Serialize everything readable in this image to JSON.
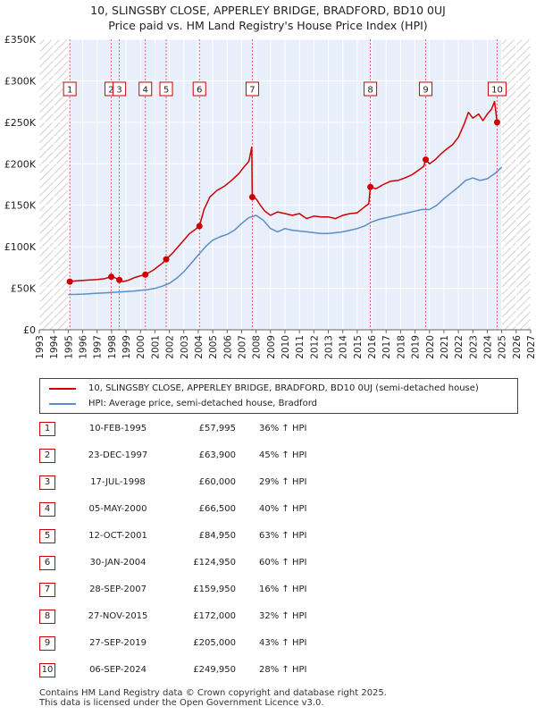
{
  "title_line1": "10, SLINGSBY CLOSE, APPERLEY BRIDGE, BRADFORD, BD10 0UJ",
  "title_line2": "Price paid vs. HM Land Registry's House Price Index (HPI)",
  "colors": {
    "price": "#cc0000",
    "hpi": "#5b8ec7",
    "shade": "#e8eefa",
    "hatch": "#bbbbbb"
  },
  "legend": {
    "price_label": "10, SLINGSBY CLOSE, APPERLEY BRIDGE, BRADFORD, BD10 0UJ (semi-detached house)",
    "hpi_label": "HPI: Average price, semi-detached house, Bradford"
  },
  "transactions": [
    {
      "num": "1",
      "date": "10-FEB-1995",
      "price": "£57,995",
      "hpi": "36% ↑ HPI"
    },
    {
      "num": "2",
      "date": "23-DEC-1997",
      "price": "£63,900",
      "hpi": "45% ↑ HPI"
    },
    {
      "num": "3",
      "date": "17-JUL-1998",
      "price": "£60,000",
      "hpi": "29% ↑ HPI"
    },
    {
      "num": "4",
      "date": "05-MAY-2000",
      "price": "£66,500",
      "hpi": "40% ↑ HPI"
    },
    {
      "num": "5",
      "date": "12-OCT-2001",
      "price": "£84,950",
      "hpi": "63% ↑ HPI"
    },
    {
      "num": "6",
      "date": "30-JAN-2004",
      "price": "£124,950",
      "hpi": "60% ↑ HPI"
    },
    {
      "num": "7",
      "date": "28-SEP-2007",
      "price": "£159,950",
      "hpi": "16% ↑ HPI"
    },
    {
      "num": "8",
      "date": "27-NOV-2015",
      "price": "£172,000",
      "hpi": "32% ↑ HPI"
    },
    {
      "num": "9",
      "date": "27-SEP-2019",
      "price": "£205,000",
      "hpi": "43% ↑ HPI"
    },
    {
      "num": "10",
      "date": "06-SEP-2024",
      "price": "£249,950",
      "hpi": "28% ↑ HPI"
    }
  ],
  "footer_line1": "Contains HM Land Registry data © Crown copyright and database right 2025.",
  "footer_line2": "This data is licensed under the Open Government Licence v3.0.",
  "chart_data": {
    "type": "line",
    "xlim": [
      1993,
      2027
    ],
    "ylim": [
      0,
      350000
    ],
    "x_ticks": [
      "1993",
      "1994",
      "1995",
      "1996",
      "1997",
      "1998",
      "1999",
      "2000",
      "2001",
      "2002",
      "2003",
      "2004",
      "2005",
      "2006",
      "2007",
      "2008",
      "2009",
      "2010",
      "2011",
      "2012",
      "2013",
      "2014",
      "2015",
      "2016",
      "2017",
      "2018",
      "2019",
      "2020",
      "2021",
      "2022",
      "2023",
      "2024",
      "2025",
      "2026",
      "2027"
    ],
    "y_ticks": [
      {
        "value": 0,
        "label": "£0"
      },
      {
        "value": 50000,
        "label": "£50K"
      },
      {
        "value": 100000,
        "label": "£100K"
      },
      {
        "value": 150000,
        "label": "£150K"
      },
      {
        "value": 200000,
        "label": "£200K"
      },
      {
        "value": 250000,
        "label": "£250K"
      },
      {
        "value": 300000,
        "label": "£300K"
      },
      {
        "value": 350000,
        "label": "£350K"
      }
    ],
    "hatch_before": 1995.11,
    "hatch_after": 2025.0,
    "sales": [
      {
        "label": "1",
        "x": 1995.11,
        "y": 57995
      },
      {
        "label": "2",
        "x": 1997.98,
        "y": 63900
      },
      {
        "label": "3",
        "x": 1998.54,
        "y": 60000
      },
      {
        "label": "4",
        "x": 2000.34,
        "y": 66500
      },
      {
        "label": "5",
        "x": 2001.78,
        "y": 84950
      },
      {
        "label": "6",
        "x": 2004.08,
        "y": 124950
      },
      {
        "label": "7",
        "x": 2007.74,
        "y": 159950
      },
      {
        "label": "8",
        "x": 2015.91,
        "y": 172000
      },
      {
        "label": "9",
        "x": 2019.74,
        "y": 205000
      },
      {
        "label": "10",
        "x": 2024.68,
        "y": 249950
      }
    ],
    "series": [
      {
        "name": "10, SLINGSBY CLOSE, APPERLEY BRIDGE, BRADFORD, BD10 0UJ (semi-detached house)",
        "x": [
          1995.11,
          1995.5,
          1996.0,
          1996.5,
          1997.0,
          1997.5,
          1997.98,
          1998.2,
          1998.54,
          1998.8,
          1999.2,
          1999.6,
          2000.0,
          2000.34,
          2000.6,
          2000.9,
          2001.2,
          2001.5,
          2001.78,
          2002.2,
          2002.6,
          2003.0,
          2003.4,
          2003.8,
          2004.08,
          2004.4,
          2004.8,
          2005.3,
          2005.8,
          2006.3,
          2006.8,
          2007.2,
          2007.5,
          2007.7,
          2007.74,
          2008.0,
          2008.3,
          2008.6,
          2009.0,
          2009.5,
          2010.0,
          2010.5,
          2011.0,
          2011.5,
          2012.0,
          2012.5,
          2013.0,
          2013.5,
          2014.0,
          2014.5,
          2015.0,
          2015.5,
          2015.8,
          2015.91,
          2016.3,
          2016.8,
          2017.3,
          2017.8,
          2018.3,
          2018.8,
          2019.3,
          2019.6,
          2019.74,
          2020.0,
          2020.4,
          2020.8,
          2021.2,
          2021.6,
          2022.0,
          2022.4,
          2022.7,
          2023.0,
          2023.4,
          2023.7,
          2024.0,
          2024.3,
          2024.5,
          2024.68
        ],
        "y": [
          57995,
          59000,
          59500,
          60000,
          60500,
          61500,
          63900,
          63000,
          60000,
          58000,
          60000,
          63000,
          65000,
          66500,
          69000,
          72000,
          76000,
          80000,
          84950,
          92000,
          100000,
          108000,
          116000,
          121000,
          124950,
          145000,
          160000,
          168000,
          173000,
          180000,
          188000,
          197000,
          203000,
          220000,
          159950,
          158000,
          150000,
          143000,
          138000,
          142000,
          140000,
          138000,
          140000,
          134000,
          137000,
          136000,
          136000,
          134000,
          138000,
          140000,
          141000,
          148000,
          152000,
          172000,
          170000,
          175000,
          179000,
          180000,
          183000,
          187000,
          193000,
          197000,
          205000,
          200000,
          205000,
          212000,
          218000,
          223000,
          232000,
          248000,
          262000,
          255000,
          260000,
          252000,
          260000,
          266000,
          275000,
          249950
        ]
      },
      {
        "name": "HPI: Average price, semi-detached house, Bradford",
        "x": [
          1995.0,
          1995.5,
          1996.0,
          1996.5,
          1997.0,
          1997.5,
          1998.0,
          1998.5,
          1999.0,
          1999.5,
          2000.0,
          2000.5,
          2001.0,
          2001.5,
          2002.0,
          2002.5,
          2003.0,
          2003.5,
          2004.0,
          2004.5,
          2005.0,
          2005.5,
          2006.0,
          2006.5,
          2007.0,
          2007.5,
          2008.0,
          2008.5,
          2009.0,
          2009.5,
          2010.0,
          2010.5,
          2011.0,
          2011.5,
          2012.0,
          2012.5,
          2013.0,
          2013.5,
          2014.0,
          2014.5,
          2015.0,
          2015.5,
          2016.0,
          2016.5,
          2017.0,
          2017.5,
          2018.0,
          2018.5,
          2019.0,
          2019.5,
          2020.0,
          2020.5,
          2021.0,
          2021.5,
          2022.0,
          2022.5,
          2023.0,
          2023.5,
          2024.0,
          2024.5,
          2025.0
        ],
        "y": [
          42500,
          42700,
          43000,
          43500,
          44000,
          44500,
          45000,
          45500,
          46000,
          46500,
          47500,
          48500,
          50000,
          52500,
          56000,
          62000,
          70000,
          80000,
          90000,
          100000,
          108000,
          112000,
          115000,
          120000,
          128000,
          135000,
          138000,
          132000,
          122000,
          118000,
          122000,
          120000,
          119000,
          118000,
          117000,
          116000,
          116000,
          117000,
          118000,
          120000,
          122000,
          125000,
          130000,
          133000,
          135000,
          137000,
          139000,
          141000,
          143000,
          145000,
          145000,
          150000,
          158000,
          165000,
          172000,
          180000,
          183000,
          180000,
          182000,
          188000,
          196000
        ]
      }
    ]
  }
}
